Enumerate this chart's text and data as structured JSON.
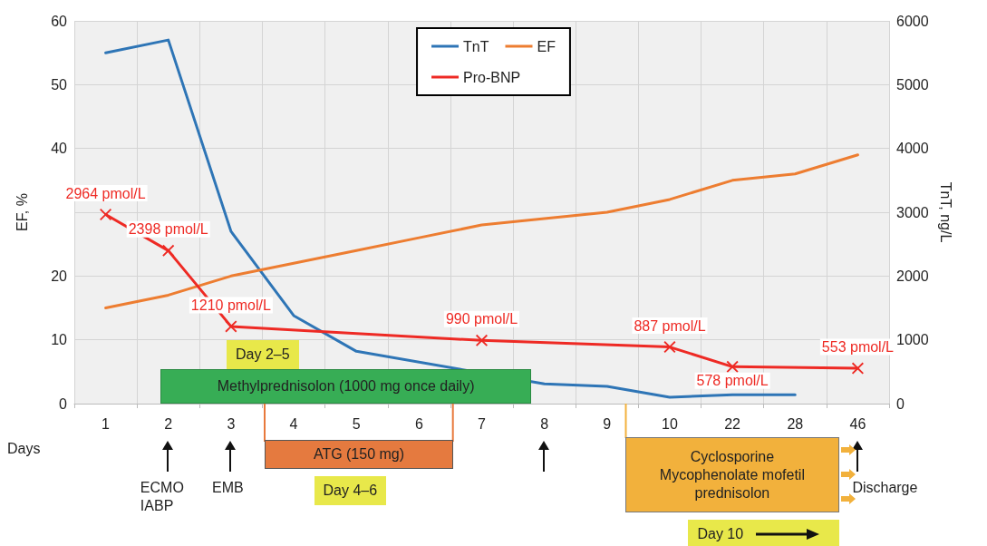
{
  "chart_data": {
    "type": "line",
    "xlabel": "Days",
    "ylabel": "EF, %",
    "y2label": "TnT, ng/L",
    "categories": [
      "1",
      "2",
      "3",
      "4",
      "5",
      "6",
      "7",
      "8",
      "9",
      "10",
      "22",
      "28",
      "46"
    ],
    "ylim": [
      0,
      60
    ],
    "yticks": [
      0,
      10,
      20,
      40,
      50,
      60
    ],
    "y2lim": [
      0,
      6000
    ],
    "y2ticks": [
      0,
      1000,
      2000,
      3000,
      4000,
      5000,
      6000
    ],
    "grid": true,
    "legend": "top",
    "series": [
      {
        "name": "TnT",
        "color": "#2e75b6",
        "axis": "y2",
        "marker": "none",
        "values": [
          5500,
          5700,
          2700,
          1380,
          820,
          null,
          null,
          310,
          270,
          100,
          140,
          140,
          null
        ]
      },
      {
        "name": "EF",
        "color": "#ed7d31",
        "axis": "y",
        "marker": "none",
        "values": [
          15,
          17,
          20,
          22,
          24,
          26,
          28,
          29,
          30,
          32,
          35,
          36,
          39
        ]
      },
      {
        "name": "Pro-BNP",
        "color": "#ee2a24",
        "axis": "y2",
        "marker": "cross",
        "values": [
          2964,
          2398,
          1210,
          null,
          null,
          null,
          990,
          null,
          null,
          887,
          578,
          null,
          553
        ],
        "value_labels": [
          "2964 pmol/L",
          "2398 pmol/L",
          "1210 pmol/L",
          null,
          null,
          null,
          "990 pmol/L",
          null,
          null,
          "887 pmol/L",
          "578 pmol/L",
          null,
          "553 pmol/L"
        ]
      }
    ],
    "annotations": [
      "ECMO\nIABP",
      "EMB",
      "Discharge",
      "Day 2–5",
      "Methylprednisolon (1000 mg once daily)",
      "ATG (150 mg)",
      "Day 4–6",
      "Cyclosporine\nMycophenolate mofetil\nprednisolon",
      "Day 10"
    ]
  }
}
